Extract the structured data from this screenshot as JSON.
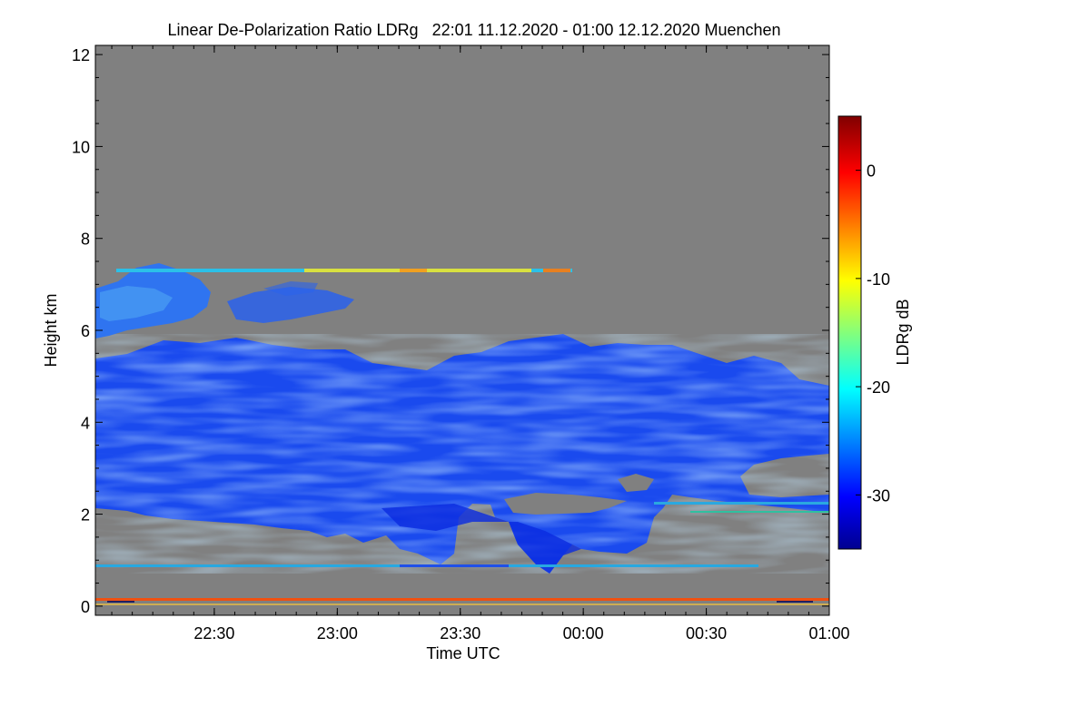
{
  "chart_data": {
    "type": "heatmap",
    "title": "Linear De-Polarization Ratio LDRg   22:01 11.12.2020 - 01:00 12.12.2020 Muenchen",
    "xlabel": "Time UTC",
    "ylabel": "Height km",
    "x_range_minutes_of_day": [
      1321,
      1500
    ],
    "x_ticks": [
      {
        "label": "22:30",
        "minute": 1350
      },
      {
        "label": "23:00",
        "minute": 1380
      },
      {
        "label": "23:30",
        "minute": 1410
      },
      {
        "label": "00:00",
        "minute": 1440
      },
      {
        "label": "00:30",
        "minute": 1470
      },
      {
        "label": "01:00",
        "minute": 1500
      }
    ],
    "y_range": [
      -0.2,
      12.2
    ],
    "y_ticks": [
      0,
      2,
      4,
      6,
      8,
      10,
      12
    ],
    "colorbar": {
      "label": "LDRg dB",
      "range": [
        -35,
        5
      ],
      "ticks": [
        0,
        -10,
        -20,
        -30
      ],
      "colormap": [
        "#00008f",
        "#0000ff",
        "#00ffff",
        "#ffff00",
        "#ff0000",
        "#800000"
      ]
    },
    "background_color": "#808080",
    "features": [
      {
        "name": "main cloud body",
        "ldr_db": -30,
        "time_start": "22:01",
        "time_end": "01:00",
        "base_km": [
          2.3,
          1.5,
          1.1,
          1.8,
          2.4,
          3.2
        ],
        "top_km": [
          5.6,
          5.5,
          5.5,
          5.9,
          5.8,
          4.9
        ]
      },
      {
        "name": "upper cloud fragment",
        "ldr_db": -25,
        "time_start": "22:01",
        "time_end": "22:32",
        "height_km": [
          5.9,
          7.4
        ]
      },
      {
        "name": "aerosol layer",
        "ldr_db": -12,
        "time_start": "22:10",
        "time_end": "23:58",
        "height_km": 7.3
      },
      {
        "name": "near-surface layer",
        "ldr_db": -2,
        "time_start": "22:01",
        "time_end": "01:00",
        "height_km": 0.25
      },
      {
        "name": "low layer",
        "ldr_db": -22,
        "time_start": "22:01",
        "time_end": "00:35",
        "height_km": 1.0
      },
      {
        "name": "cloud gap",
        "time_start": "23:37",
        "time_end": "23:49",
        "height_km": [
          1.8,
          2.4
        ]
      }
    ]
  }
}
